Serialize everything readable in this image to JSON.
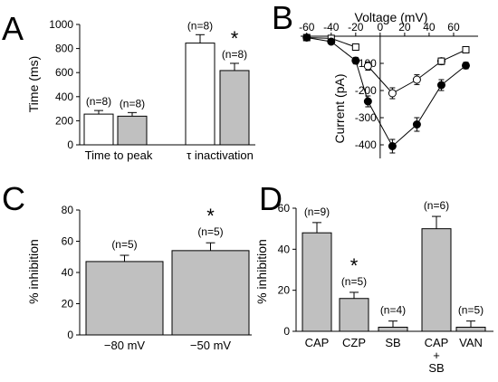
{
  "colors": {
    "gray_bar": "#c0c0c0",
    "white_bar": "#ffffff",
    "stroke": "#000000"
  },
  "chart_data": [
    {
      "panel": "A",
      "type": "bar",
      "ylabel": "Time (ms)",
      "ylim": [
        0,
        1000
      ],
      "yticks": [
        "0",
        "200",
        "400",
        "600",
        "800",
        "1000"
      ],
      "categories": [
        "Time to peak",
        "τ inactivation"
      ],
      "bars": [
        {
          "group": 0,
          "fill": "white",
          "value": 255,
          "err": 30,
          "n": "(n=8)",
          "star": ""
        },
        {
          "group": 0,
          "fill": "gray",
          "value": 238,
          "err": 30,
          "n": "(n=8)",
          "star": ""
        },
        {
          "group": 1,
          "fill": "white",
          "value": 845,
          "err": 70,
          "n": "(n=8)",
          "star": ""
        },
        {
          "group": 1,
          "fill": "gray",
          "value": 617,
          "err": 60,
          "n": "(n=8)",
          "star": "*"
        }
      ]
    },
    {
      "panel": "B",
      "type": "line",
      "xlabel": "Voltage (mV)",
      "ylabel": "Current (pA)",
      "xlim": [
        -65,
        80
      ],
      "ylim": [
        -450,
        0
      ],
      "xticks": [
        "-60",
        "-40",
        "-20",
        "0",
        "20",
        "40",
        "60"
      ],
      "yticks": [
        "0",
        "-100",
        "-200",
        "-300",
        "-400"
      ],
      "series": [
        {
          "marker": "open_square",
          "x": [
            -60,
            -40,
            -20
          ],
          "y": [
            -5,
            -8,
            -40
          ],
          "err": [
            3,
            4,
            6
          ]
        },
        {
          "marker": "open_circle",
          "x": [
            -10,
            10,
            30,
            50
          ],
          "y": [
            -110,
            -210,
            -160,
            -92
          ],
          "err": [
            15,
            20,
            18,
            12
          ]
        },
        {
          "marker": "open_square",
          "x": [
            50,
            70
          ],
          "y": [
            -92,
            -50
          ],
          "err": [
            12,
            8
          ]
        },
        {
          "marker": "filled_circle",
          "x": [
            -60,
            -40,
            -20,
            -10,
            10,
            30,
            50,
            70
          ],
          "y": [
            -5,
            -20,
            -90,
            -240,
            -405,
            -325,
            -180,
            -108
          ],
          "err": [
            3,
            5,
            12,
            20,
            25,
            25,
            20,
            12
          ]
        }
      ]
    },
    {
      "panel": "C",
      "type": "bar",
      "ylabel": "% inhibition",
      "ylim": [
        0,
        80
      ],
      "yticks": [
        "0",
        "20",
        "40",
        "60",
        "80"
      ],
      "categories": [
        "−80 mV",
        "−50 mV"
      ],
      "bars": [
        {
          "value": 47,
          "err": 4,
          "n": "(n=5)",
          "star": ""
        },
        {
          "value": 54,
          "err": 5,
          "n": "(n=5)",
          "star": "*"
        }
      ]
    },
    {
      "panel": "D",
      "type": "bar",
      "ylabel": "% inhibition",
      "ylim": [
        0,
        60
      ],
      "yticks": [
        "0",
        "20",
        "40",
        "60"
      ],
      "categories": [
        "CAP",
        "CZP",
        "SB",
        "CAP\n+\nSB",
        "VAN"
      ],
      "bars": [
        {
          "value": 48,
          "err": 5,
          "n": "(n=9)",
          "star": ""
        },
        {
          "value": 16,
          "err": 3,
          "n": "(n=5)",
          "star": "*"
        },
        {
          "value": 2,
          "err": 3,
          "n": "(n=4)",
          "star": ""
        },
        {
          "value": 50,
          "err": 6,
          "n": "(n=6)",
          "star": ""
        },
        {
          "value": 2,
          "err": 3,
          "n": "(n=5)",
          "star": ""
        }
      ]
    }
  ]
}
